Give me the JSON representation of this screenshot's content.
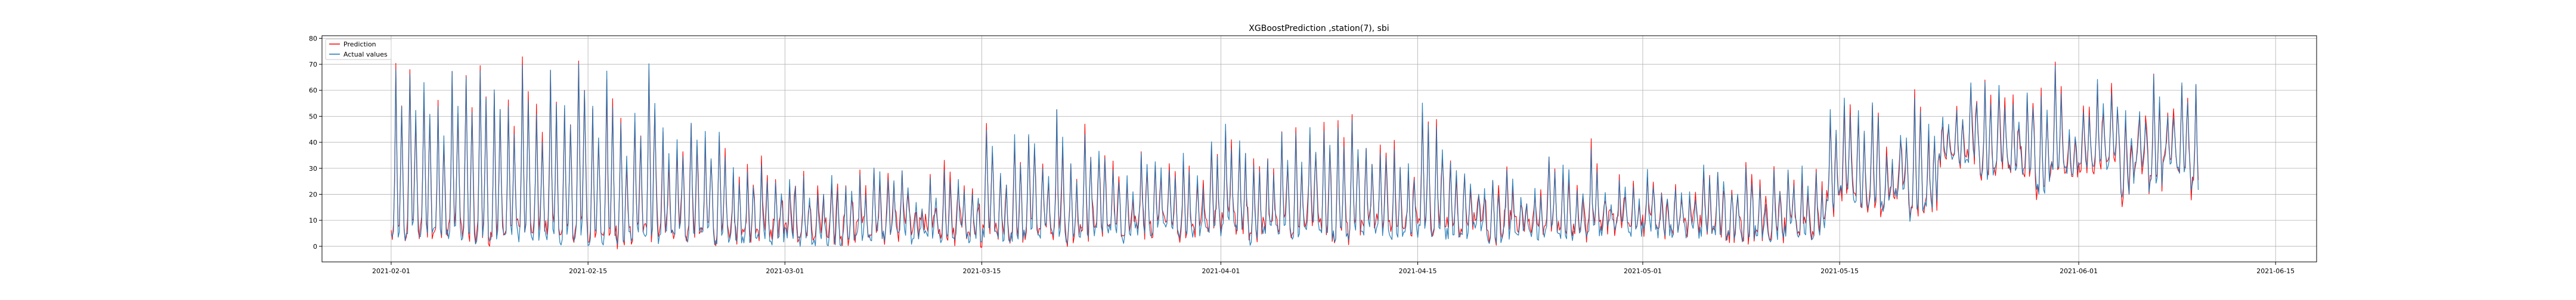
{
  "chart_data": {
    "type": "line",
    "title": "XGBoostPrediction ,station(7), sbi",
    "xlabel": "",
    "ylabel": "",
    "xlim": [
      "2021-01-27T02:00",
      "2021-06-17T22:00"
    ],
    "ylim": [
      -6,
      81
    ],
    "xticks": [
      "2021-02-01",
      "2021-02-15",
      "2021-03-01",
      "2021-03-15",
      "2021-04-01",
      "2021-04-15",
      "2021-05-01",
      "2021-05-15",
      "2021-06-01",
      "2021-06-15"
    ],
    "yticks": [
      0,
      10,
      20,
      30,
      40,
      50,
      60,
      70,
      80
    ],
    "grid": true,
    "legend_position": "top-left",
    "x_start": "2021-02-01",
    "x_step_hours": 2,
    "series": [
      {
        "name": "Prediction",
        "color": "#ff0000",
        "values": []
      },
      {
        "name": "Actual values",
        "color": "#1f77b4",
        "values": []
      }
    ]
  }
}
